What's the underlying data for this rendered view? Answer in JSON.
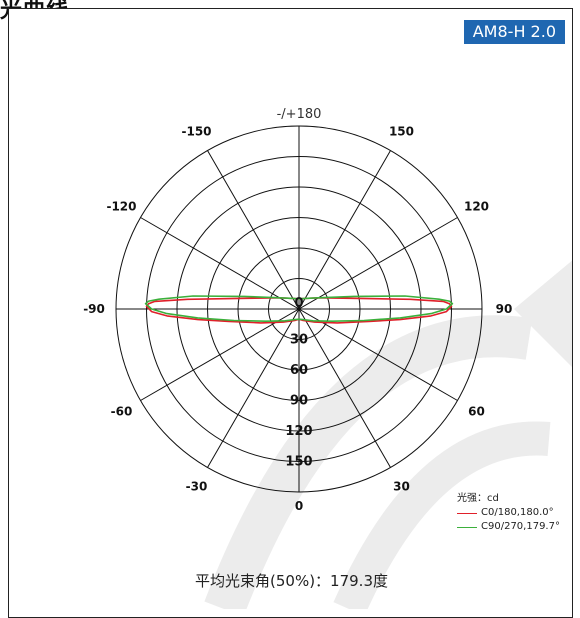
{
  "heading": "光曲线",
  "badge": "AM8-H 2.0",
  "chart_data": {
    "type": "polar",
    "top_label": "-/+180",
    "angle_labels": [
      {
        "deg": -150,
        "text": "-150"
      },
      {
        "deg": 150,
        "text": "150"
      },
      {
        "deg": -120,
        "text": "-120"
      },
      {
        "deg": 120,
        "text": "120"
      },
      {
        "deg": -90,
        "text": "-90"
      },
      {
        "deg": 90,
        "text": "90"
      },
      {
        "deg": -60,
        "text": "-60"
      },
      {
        "deg": 60,
        "text": "60"
      },
      {
        "deg": -30,
        "text": "-30"
      },
      {
        "deg": 30,
        "text": "30"
      }
    ],
    "bottom_label": "0",
    "ring_labels": [
      "0",
      "30",
      "60",
      "90",
      "120",
      "150"
    ],
    "unit_label": "光强：cd",
    "series": [
      {
        "name": "C0/180,180.0°",
        "color": "#e0202a",
        "points": [
          [
            -93,
            142
          ],
          [
            -92,
            148
          ],
          [
            -91,
            150
          ],
          [
            -89,
            145
          ],
          [
            -87,
            130
          ],
          [
            -84,
            100
          ],
          [
            -80,
            70
          ],
          [
            -70,
            40
          ],
          [
            -50,
            20
          ],
          [
            -20,
            12
          ],
          [
            0,
            10
          ],
          [
            20,
            12
          ],
          [
            50,
            20
          ],
          [
            70,
            40
          ],
          [
            80,
            70
          ],
          [
            84,
            100
          ],
          [
            87,
            130
          ],
          [
            89,
            145
          ],
          [
            91,
            150
          ],
          [
            92,
            148
          ],
          [
            93,
            142
          ],
          [
            95,
            110
          ],
          [
            100,
            60
          ],
          [
            120,
            22
          ],
          [
            150,
            12
          ],
          [
            180,
            10
          ],
          [
            -150,
            12
          ],
          [
            -120,
            22
          ],
          [
            -100,
            60
          ],
          [
            -95,
            110
          ]
        ]
      },
      {
        "name": "C90/270,179.7°",
        "color": "#3bb03b",
        "points": [
          [
            -94,
            138
          ],
          [
            -93,
            148
          ],
          [
            -92,
            151
          ],
          [
            -90,
            145
          ],
          [
            -88,
            130
          ],
          [
            -85,
            100
          ],
          [
            -80,
            65
          ],
          [
            -70,
            35
          ],
          [
            -50,
            18
          ],
          [
            -20,
            11
          ],
          [
            0,
            10
          ],
          [
            20,
            11
          ],
          [
            50,
            18
          ],
          [
            70,
            35
          ],
          [
            80,
            65
          ],
          [
            85,
            100
          ],
          [
            88,
            130
          ],
          [
            90,
            145
          ],
          [
            92,
            151
          ],
          [
            93,
            148
          ],
          [
            94,
            138
          ],
          [
            97,
            105
          ],
          [
            103,
            55
          ],
          [
            120,
            22
          ],
          [
            150,
            12
          ],
          [
            180,
            10
          ],
          [
            -150,
            12
          ],
          [
            -120,
            22
          ],
          [
            -103,
            55
          ],
          [
            -97,
            105
          ]
        ]
      }
    ],
    "rmax": 180
  },
  "caption": "平均光束角(50%)：179.3度"
}
